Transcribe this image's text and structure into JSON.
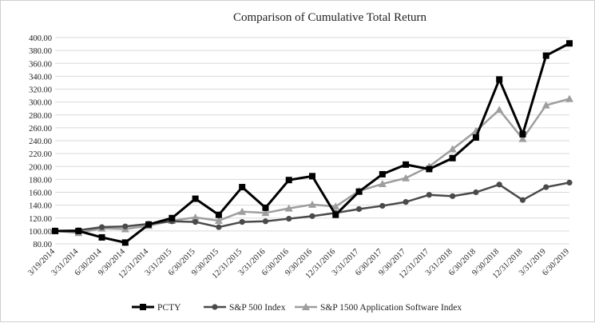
{
  "chart_data": {
    "type": "line",
    "title": "Comparison of Cumulative Total Return",
    "xlabel": "",
    "ylabel": "",
    "ylim": [
      80,
      400
    ],
    "yticks": [
      80,
      100,
      120,
      140,
      160,
      180,
      200,
      220,
      240,
      260,
      280,
      300,
      320,
      340,
      360,
      380,
      400
    ],
    "ytick_labels": [
      "80.00",
      "100.00",
      "120.00",
      "140.00",
      "160.00",
      "180.00",
      "200.00",
      "220.00",
      "240.00",
      "260.00",
      "280.00",
      "300.00",
      "320.00",
      "340.00",
      "360.00",
      "380.00",
      "400.00"
    ],
    "grid": true,
    "legend_position": "bottom",
    "categories": [
      "3/19/2014",
      "3/31/2014",
      "6/30/2014",
      "9/30/2014",
      "12/31/2014",
      "3/31/2015",
      "6/30/2015",
      "9/30/2015",
      "12/31/2015",
      "3/31/2016",
      "6/30/2016",
      "9/30/2016",
      "12/31/2016",
      "3/31/2017",
      "6/30/2017",
      "9/30/2017",
      "12/31/2017",
      "3/31/2018",
      "6/30/2018",
      "9/30/2018",
      "12/31/2018",
      "3/31/2019",
      "6/30/2019"
    ],
    "series": [
      {
        "name": "PCTY",
        "color": "#000000",
        "marker": "square",
        "values": [
          100,
          100,
          90,
          82,
          110,
          120,
          150,
          125,
          168,
          136,
          179,
          185,
          125,
          161,
          188,
          203,
          196,
          213,
          245,
          335,
          250,
          372,
          391
        ]
      },
      {
        "name": "S&P 500 Index",
        "color": "#4a4a4a",
        "marker": "circle",
        "values": [
          100,
          101,
          106,
          107,
          111,
          115,
          114,
          106,
          114,
          115,
          119,
          123,
          128,
          134,
          139,
          145,
          156,
          154,
          160,
          172,
          148,
          168,
          175
        ]
      },
      {
        "name": "S&P 1500 Application Software Index",
        "color": "#9e9e9e",
        "marker": "triangle",
        "values": [
          100,
          97,
          104,
          103,
          108,
          116,
          121,
          116,
          130,
          128,
          135,
          141,
          138,
          162,
          173,
          182,
          200,
          227,
          255,
          288,
          243,
          295,
          305
        ]
      }
    ]
  }
}
